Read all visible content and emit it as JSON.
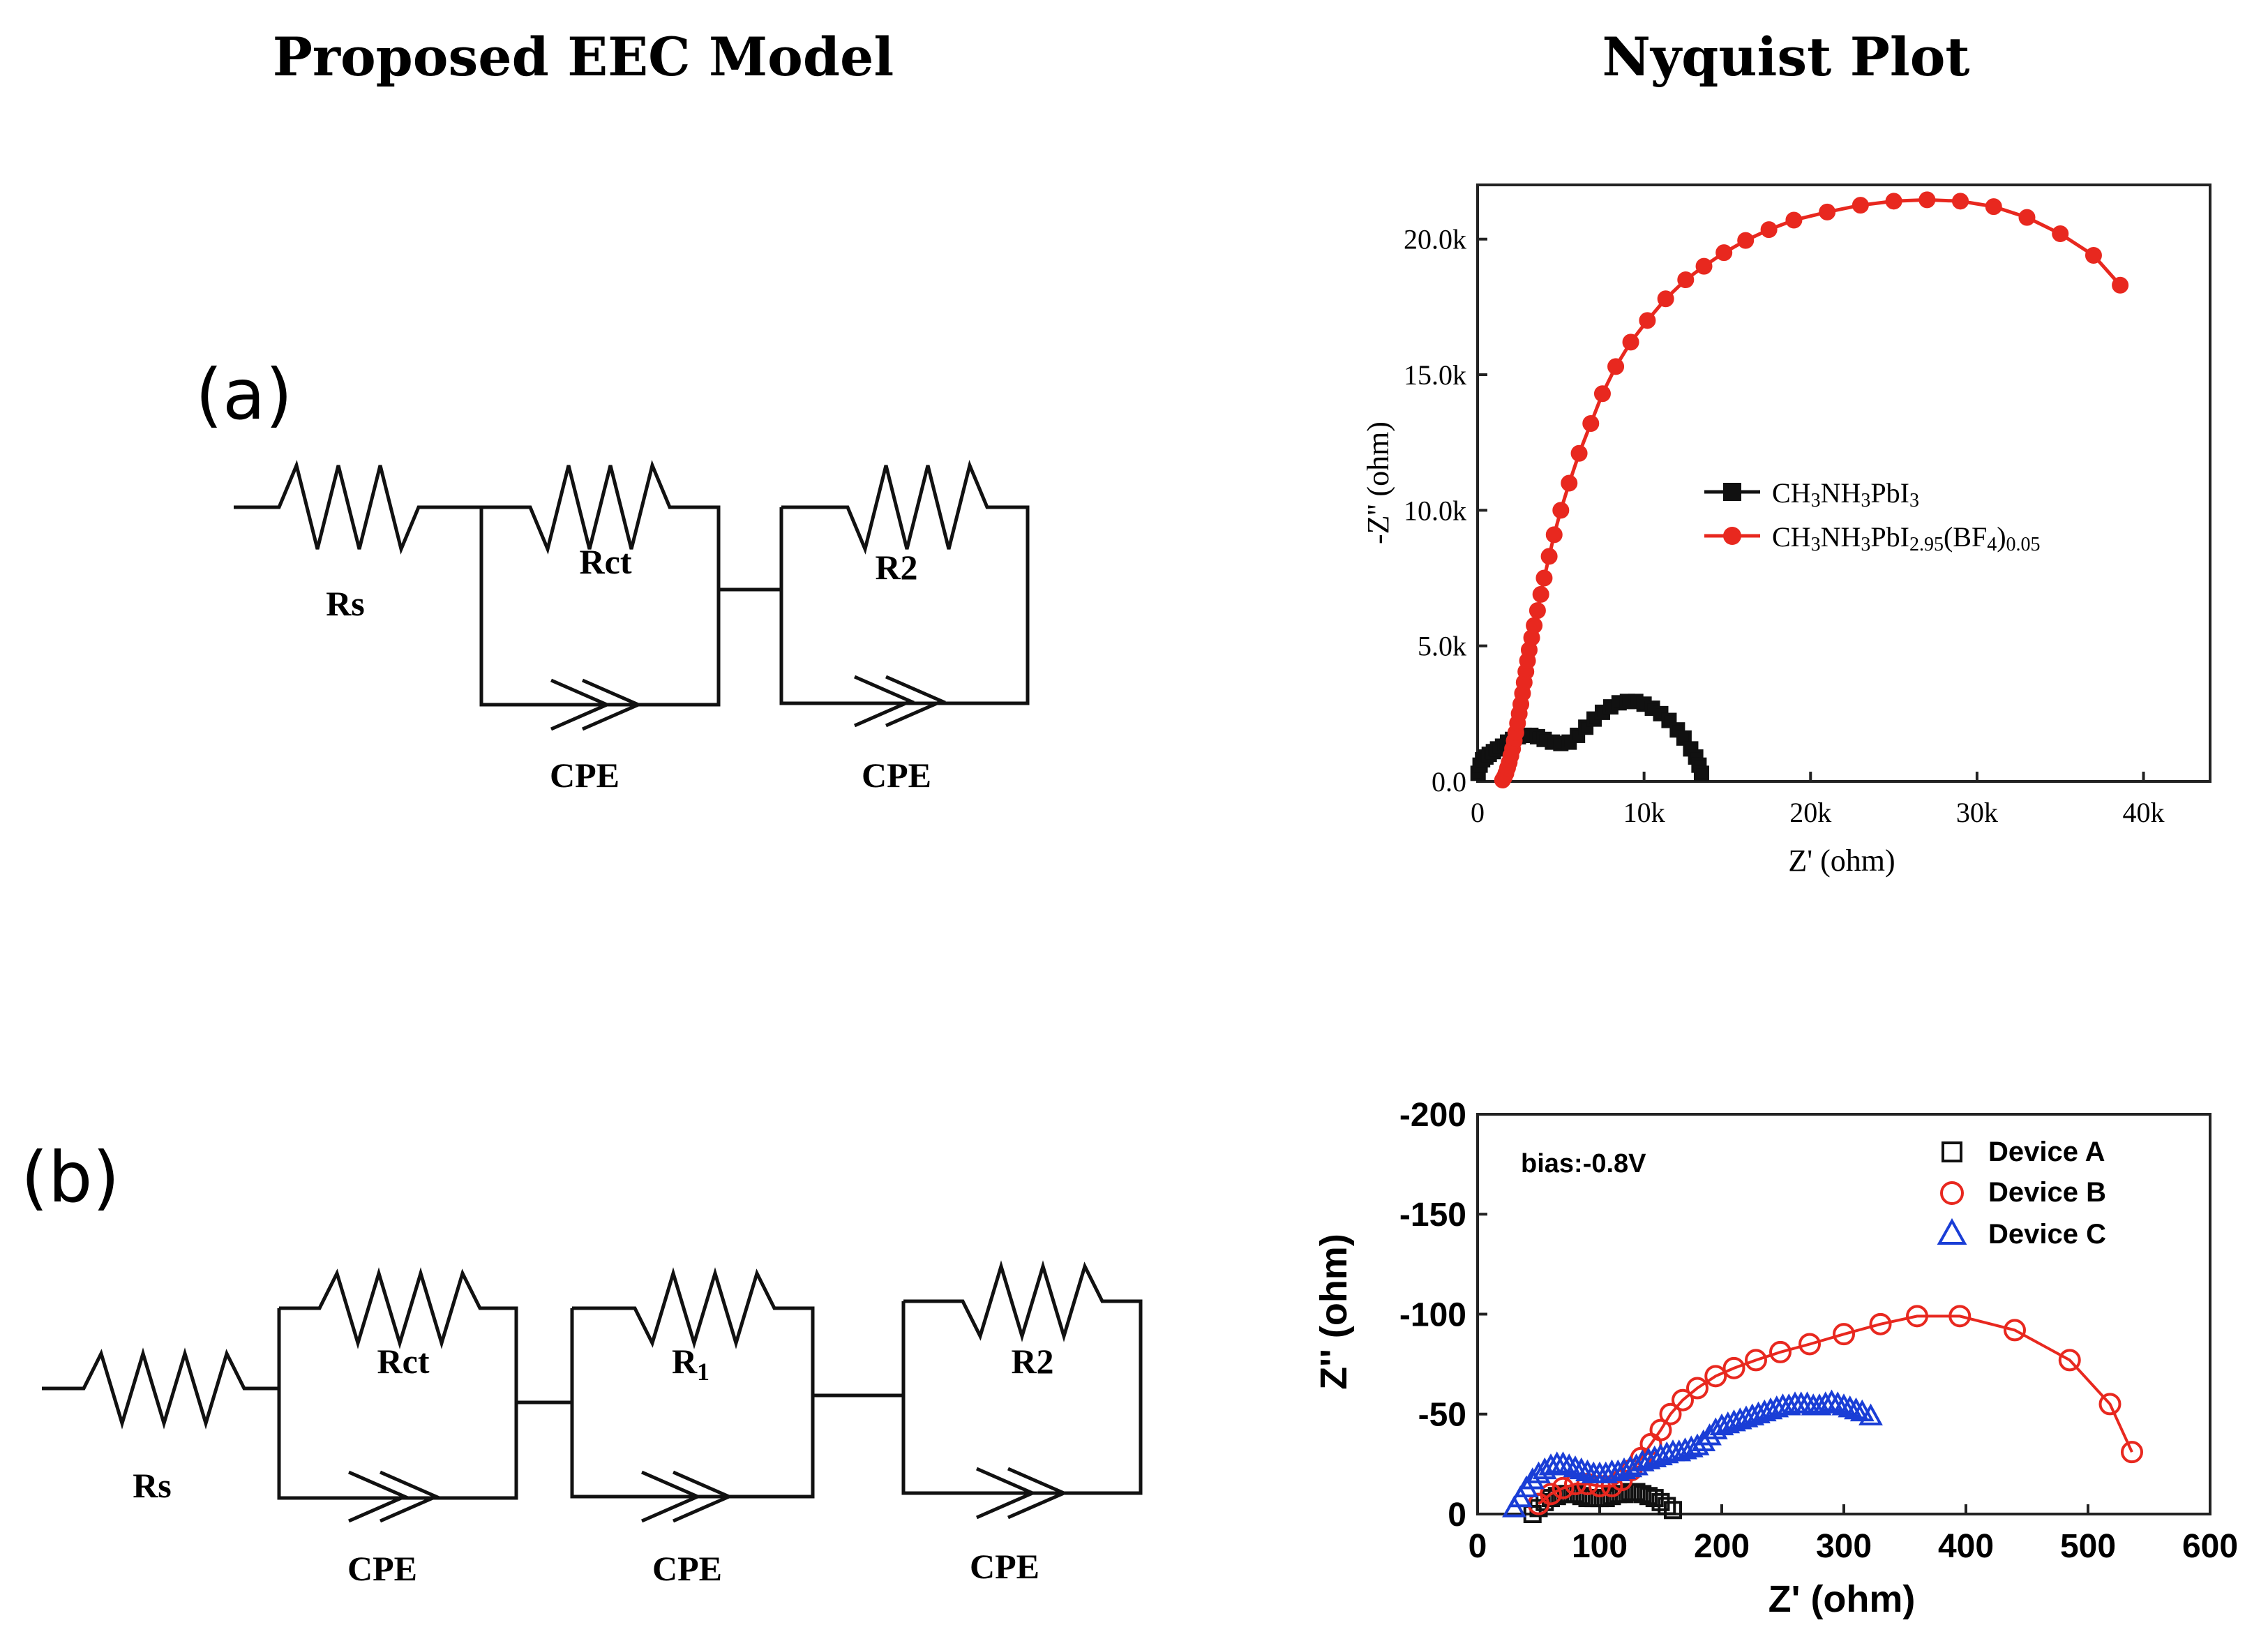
{
  "headers": {
    "left": "Proposed EEC Model",
    "right": "Nyquist Plot"
  },
  "circuits": {
    "a": {
      "label": "(a)",
      "components": {
        "rs": "Rs",
        "rct": "Rct",
        "r2": "R2",
        "cpe1": "CPE",
        "cpe2": "CPE"
      }
    },
    "b": {
      "label": "(b)",
      "components": {
        "rs": "Rs",
        "rct": "Rct",
        "r1": "R",
        "r1_sub": "1",
        "r2": "R2",
        "cpe1": "CPE",
        "cpe2": "CPE",
        "cpe3": "CPE"
      }
    }
  },
  "chart_data": [
    {
      "type": "scatter",
      "id": "top",
      "title": "",
      "xlabel": "Z' (ohm)",
      "ylabel": "-Z'' (ohm)",
      "xlim": [
        0,
        44000
      ],
      "ylim": [
        0,
        22000
      ],
      "xticks": [
        0,
        10000,
        20000,
        30000,
        40000
      ],
      "xtick_labels": [
        "0",
        "10k",
        "20k",
        "30k",
        "40k"
      ],
      "yticks": [
        0,
        5000,
        10000,
        15000,
        20000
      ],
      "ytick_labels": [
        "0.0",
        "5.0k",
        "10.0k",
        "15.0k",
        "20.0k"
      ],
      "legend": [
        {
          "name": "CH",
          "sub": "3",
          "name2": "NH",
          "sub2": "3",
          "name3": "PbI",
          "sub3": "3"
        },
        {
          "name": "CH",
          "sub": "3",
          "name2": "NH",
          "sub2": "3",
          "name3": "PbI",
          "sub3": "2.95",
          "name4": "(BF",
          "sub4": "4",
          "name5": ")",
          "sub5": "0.05"
        }
      ],
      "series": [
        {
          "name": "CH3NH3PbI3",
          "color": "#111111",
          "marker": "square",
          "x": [
            30,
            150,
            300,
            500,
            700,
            950,
            1200,
            1500,
            1800,
            2100,
            2450,
            2800,
            3200,
            3600,
            4000,
            4500,
            5000,
            5500,
            6000,
            6500,
            7000,
            7500,
            8000,
            8500,
            9000,
            9500,
            10000,
            10500,
            11000,
            11500,
            12000,
            12400,
            12800,
            13100,
            13300,
            13450
          ],
          "y": [
            300,
            600,
            800,
            900,
            1000,
            1100,
            1200,
            1300,
            1450,
            1550,
            1650,
            1700,
            1700,
            1650,
            1550,
            1450,
            1400,
            1450,
            1700,
            2000,
            2300,
            2550,
            2750,
            2900,
            2950,
            2950,
            2850,
            2700,
            2500,
            2250,
            1900,
            1600,
            1200,
            900,
            600,
            300
          ]
        },
        {
          "name": "CH3NH3PbI2.95(BF4)0.05",
          "color": "#e8281f",
          "marker": "circle",
          "x": [
            1500,
            1600,
            1700,
            1800,
            1900,
            2000,
            2100,
            2200,
            2300,
            2400,
            2500,
            2600,
            2700,
            2800,
            2900,
            3000,
            3100,
            3250,
            3400,
            3600,
            3800,
            4000,
            4300,
            4600,
            5000,
            5500,
            6100,
            6800,
            7500,
            8300,
            9200,
            10200,
            11300,
            12500,
            13600,
            14800,
            16100,
            17500,
            19000,
            21000,
            23000,
            25000,
            27000,
            29000,
            31000,
            33000,
            35000,
            37000,
            38600
          ],
          "y": [
            50,
            150,
            300,
            500,
            700,
            950,
            1200,
            1500,
            1800,
            2150,
            2500,
            2850,
            3250,
            3650,
            4050,
            4450,
            4850,
            5300,
            5750,
            6300,
            6900,
            7500,
            8300,
            9100,
            10000,
            11000,
            12100,
            13200,
            14300,
            15300,
            16200,
            17000,
            17800,
            18500,
            19000,
            19500,
            19950,
            20350,
            20700,
            21000,
            21250,
            21400,
            21450,
            21400,
            21200,
            20800,
            20200,
            19400,
            18300
          ]
        }
      ]
    },
    {
      "type": "scatter",
      "id": "bottom",
      "title": "",
      "annotation": "bias:-0.8V",
      "xlabel": "Z' (ohm)",
      "ylabel": "Z'' (ohm)",
      "xlim": [
        0,
        600
      ],
      "ylim": [
        0,
        -200
      ],
      "xticks": [
        0,
        100,
        200,
        300,
        400,
        500,
        600
      ],
      "xtick_labels": [
        "0",
        "100",
        "200",
        "300",
        "400",
        "500",
        "600"
      ],
      "yticks": [
        0,
        -50,
        -100,
        -150,
        -200
      ],
      "ytick_labels": [
        "0",
        "-50",
        "-100",
        "-150",
        "-200"
      ],
      "legend": [
        {
          "name": "Device A",
          "marker": "□"
        },
        {
          "name": "Device B",
          "marker": "○"
        },
        {
          "name": "Device C",
          "marker": "△"
        }
      ],
      "series": [
        {
          "name": "Device A",
          "color": "#111111",
          "marker": "square",
          "line": false,
          "x": [
            45,
            50,
            55,
            60,
            65,
            70,
            75,
            80,
            85,
            90,
            95,
            100,
            105,
            110,
            115,
            120,
            125,
            130,
            135,
            140,
            145,
            150,
            155,
            160
          ],
          "y": [
            0,
            -3,
            -6,
            -8,
            -9,
            -10,
            -10,
            -10,
            -9,
            -8,
            -8,
            -8,
            -8,
            -9,
            -10,
            -10,
            -11,
            -11,
            -10,
            -9,
            -8,
            -6,
            -4,
            -2
          ]
        },
        {
          "name": "Device B",
          "color": "#e8281f",
          "marker": "circle",
          "line": true,
          "x": [
            50,
            60,
            70,
            80,
            90,
            100,
            110,
            118,
            126,
            134,
            142,
            150,
            158,
            168,
            180,
            195,
            210,
            228,
            248,
            272,
            300,
            330,
            360,
            395,
            440,
            485,
            518,
            536
          ],
          "y": [
            -5,
            -10,
            -13,
            -15,
            -15,
            -14,
            -14,
            -17,
            -22,
            -28,
            -35,
            -42,
            -50,
            -57,
            -63,
            -69,
            -73,
            -77,
            -81,
            -85,
            -90,
            -95,
            -99,
            -99,
            -92,
            -77,
            -55,
            -31
          ]
        },
        {
          "name": "Device C",
          "color": "#1a3ed6",
          "marker": "triangle",
          "line": false,
          "x": [
            30,
            35,
            40,
            45,
            50,
            55,
            60,
            65,
            70,
            75,
            80,
            85,
            90,
            95,
            100,
            105,
            110,
            115,
            120,
            125,
            130,
            135,
            140,
            145,
            150,
            155,
            160,
            165,
            170,
            175,
            180,
            185,
            190,
            195,
            200,
            205,
            210,
            215,
            220,
            225,
            230,
            235,
            240,
            245,
            250,
            255,
            260,
            265,
            270,
            275,
            280,
            285,
            290,
            295,
            300,
            305,
            310,
            315,
            322
          ],
          "y": [
            -3,
            -8,
            -13,
            -17,
            -20,
            -22,
            -24,
            -25,
            -25,
            -24,
            -23,
            -22,
            -21,
            -20,
            -20,
            -20,
            -21,
            -21,
            -22,
            -23,
            -24,
            -26,
            -27,
            -28,
            -29,
            -30,
            -31,
            -31,
            -32,
            -33,
            -34,
            -36,
            -39,
            -42,
            -44,
            -45,
            -46,
            -47,
            -48,
            -49,
            -50,
            -51,
            -52,
            -53,
            -54,
            -54,
            -55,
            -55,
            -55,
            -54,
            -54,
            -55,
            -56,
            -55,
            -54,
            -53,
            -52,
            -51,
            -49
          ]
        }
      ]
    }
  ]
}
